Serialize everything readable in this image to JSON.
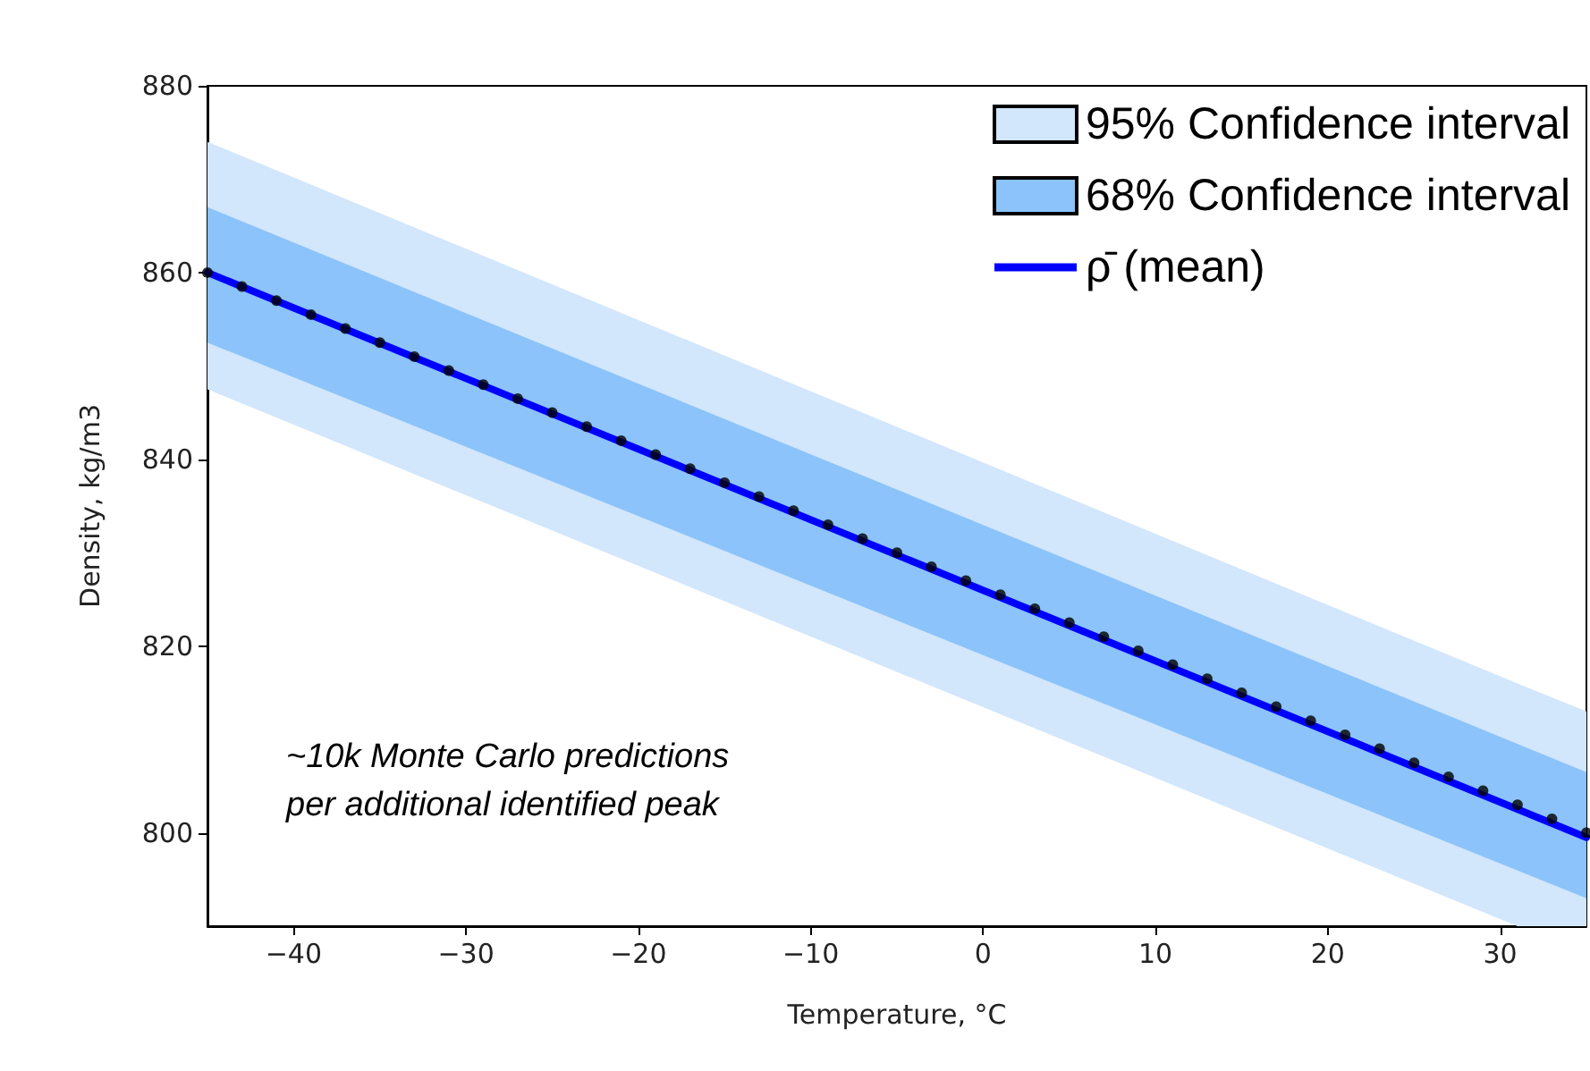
{
  "chart_data": {
    "type": "line",
    "xlabel": "Temperature, °C",
    "ylabel": "Density, kg/m3",
    "xlim": [
      -45,
      35
    ],
    "xticks": [
      -40,
      -30,
      -20,
      -10,
      0,
      10,
      20,
      30
    ],
    "ylim": [
      790,
      880
    ],
    "yticks": [
      800,
      820,
      840,
      860,
      880
    ],
    "grid": false,
    "legend": "top right",
    "annotations": [
      "~10k Monte Carlo predictions\nper additional identified peak"
    ],
    "series": [
      {
        "name": "95% Confidence interval",
        "type": "area",
        "color": "#d2e6fc",
        "x": [
          -45,
          31,
          35
        ],
        "values": [
          null,
          null,
          null
        ],
        "lower": [
          847.5,
          790,
          790
        ],
        "upper": [
          874,
          816,
          813
        ]
      },
      {
        "name": "68% Confidence interval",
        "type": "area",
        "color": "#8bc3fa",
        "x": [
          -45,
          35
        ],
        "values": [
          null,
          null
        ],
        "lower": [
          852.5,
          793
        ],
        "upper": [
          867,
          806.5
        ]
      },
      {
        "name": "ρ̄ (mean)",
        "color": "#0000ff",
        "marker": "none",
        "line_style": "solid",
        "x": [
          -45,
          35
        ],
        "values": [
          860,
          799.5
        ]
      },
      {
        "type": "scatter",
        "color": "#000000",
        "marker": "circle",
        "x": [
          -45,
          -43,
          -41,
          -39,
          -37,
          -35,
          -33,
          -31,
          -29,
          -27,
          -25,
          -23,
          -21,
          -19,
          -17,
          -15,
          -13,
          -11,
          -9,
          -7,
          -5,
          -3,
          -1,
          1,
          3,
          5,
          7,
          9,
          11,
          13,
          15,
          17,
          19,
          21,
          23,
          25,
          27,
          29,
          31,
          33,
          35
        ],
        "values": [
          860,
          858.5,
          857,
          855.5,
          854,
          852.5,
          851,
          849.5,
          848,
          846.5,
          845,
          843.5,
          842,
          840.5,
          839,
          837.5,
          836,
          834.5,
          833,
          831.5,
          830,
          828.5,
          827,
          825.5,
          824,
          822.5,
          821,
          819.5,
          818,
          816.5,
          815,
          813.5,
          812,
          810.5,
          809,
          807.5,
          806,
          804.5,
          803,
          801.5,
          800
        ]
      }
    ]
  }
}
